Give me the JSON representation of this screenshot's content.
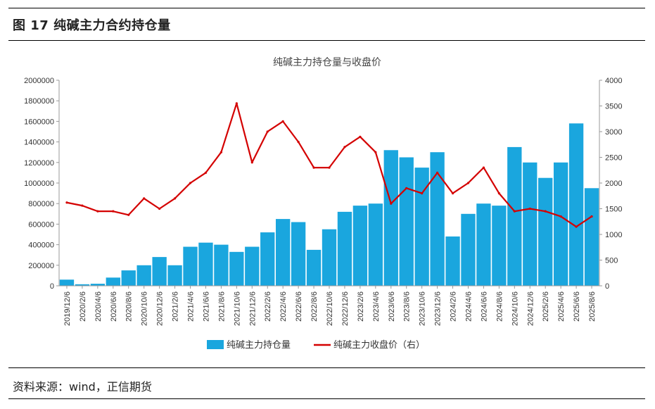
{
  "figure": {
    "header": "图 17    纯碱主力合约持仓量",
    "source": "资料来源：wind，正信期货"
  },
  "colors": {
    "bars": "#1aa6de",
    "line": "#d40000"
  },
  "chart_data": {
    "type": "bar+line",
    "title": "纯碱主力持仓量与收盘价",
    "grid": false,
    "legend_position": "bottom",
    "y_left": {
      "min": 0,
      "max": 2000000,
      "ticks": [
        0,
        200000,
        400000,
        600000,
        800000,
        1000000,
        1200000,
        1400000,
        1600000,
        1800000,
        2000000
      ]
    },
    "y_right": {
      "min": 0,
      "max": 4000,
      "ticks": [
        0,
        500,
        1000,
        1500,
        2000,
        2500,
        3000,
        3500,
        4000
      ]
    },
    "x_ticks": [
      "2019/12/6",
      "2020/2/6",
      "2020/4/6",
      "2020/6/6",
      "2020/8/6",
      "2020/10/6",
      "2020/12/6",
      "2021/2/6",
      "2021/4/6",
      "2021/6/6",
      "2021/8/6",
      "2021/10/6",
      "2021/12/6",
      "2022/2/6",
      "2022/4/6",
      "2022/6/6",
      "2022/8/6",
      "2022/10/6",
      "2022/12/6",
      "2023/2/6",
      "2023/4/6",
      "2023/6/6",
      "2023/8/6",
      "2023/10/6",
      "2023/12/6",
      "2024/2/6",
      "2024/4/6",
      "2024/6/6",
      "2024/8/6",
      "2024/10/6",
      "2024/12/6",
      "2025/2/6",
      "2025/4/6",
      "2025/6/6",
      "2025/8/6"
    ],
    "series": [
      {
        "name": "纯碱主力持仓量",
        "type": "bar",
        "axis": "left",
        "x": [
          "2019/12/6",
          "2020/2/6",
          "2020/4/6",
          "2020/6/6",
          "2020/8/6",
          "2020/10/6",
          "2020/12/6",
          "2021/2/6",
          "2021/4/6",
          "2021/6/6",
          "2021/8/6",
          "2021/10/6",
          "2021/12/6",
          "2022/2/6",
          "2022/4/6",
          "2022/6/6",
          "2022/8/6",
          "2022/10/6",
          "2022/12/6",
          "2023/2/6",
          "2023/4/6",
          "2023/6/6",
          "2023/8/6",
          "2023/10/6",
          "2023/12/6",
          "2024/2/6",
          "2024/4/6",
          "2024/6/6",
          "2024/8/6",
          "2024/10/6",
          "2024/12/6",
          "2025/2/6",
          "2025/4/6",
          "2025/6/6",
          "2025/8/6"
        ],
        "values": [
          60000,
          15000,
          20000,
          80000,
          150000,
          200000,
          280000,
          200000,
          380000,
          420000,
          400000,
          330000,
          380000,
          520000,
          650000,
          620000,
          350000,
          550000,
          720000,
          780000,
          800000,
          1320000,
          1250000,
          1150000,
          1300000,
          480000,
          700000,
          800000,
          780000,
          1350000,
          1200000,
          1050000,
          1200000,
          1580000,
          950000
        ]
      },
      {
        "name": "纯碱主力收盘价（右）",
        "type": "line",
        "axis": "right",
        "x": [
          "2019/12/6",
          "2020/2/6",
          "2020/4/6",
          "2020/6/6",
          "2020/8/6",
          "2020/10/6",
          "2020/12/6",
          "2021/2/6",
          "2021/4/6",
          "2021/6/6",
          "2021/8/6",
          "2021/10/6",
          "2021/12/6",
          "2022/2/6",
          "2022/4/6",
          "2022/6/6",
          "2022/8/6",
          "2022/10/6",
          "2022/12/6",
          "2023/2/6",
          "2023/4/6",
          "2023/6/6",
          "2023/8/6",
          "2023/10/6",
          "2023/12/6",
          "2024/2/6",
          "2024/4/6",
          "2024/6/6",
          "2024/8/6",
          "2024/10/6",
          "2024/12/6",
          "2025/2/6",
          "2025/4/6",
          "2025/6/6",
          "2025/8/6"
        ],
        "values": [
          1620,
          1560,
          1450,
          1450,
          1380,
          1700,
          1500,
          1700,
          2000,
          2200,
          2600,
          3550,
          2400,
          3000,
          3200,
          2800,
          2300,
          2300,
          2700,
          2900,
          2600,
          1600,
          1900,
          1800,
          2200,
          1800,
          2000,
          2300,
          1800,
          1450,
          1500,
          1450,
          1350,
          1150,
          1350
        ]
      }
    ]
  }
}
